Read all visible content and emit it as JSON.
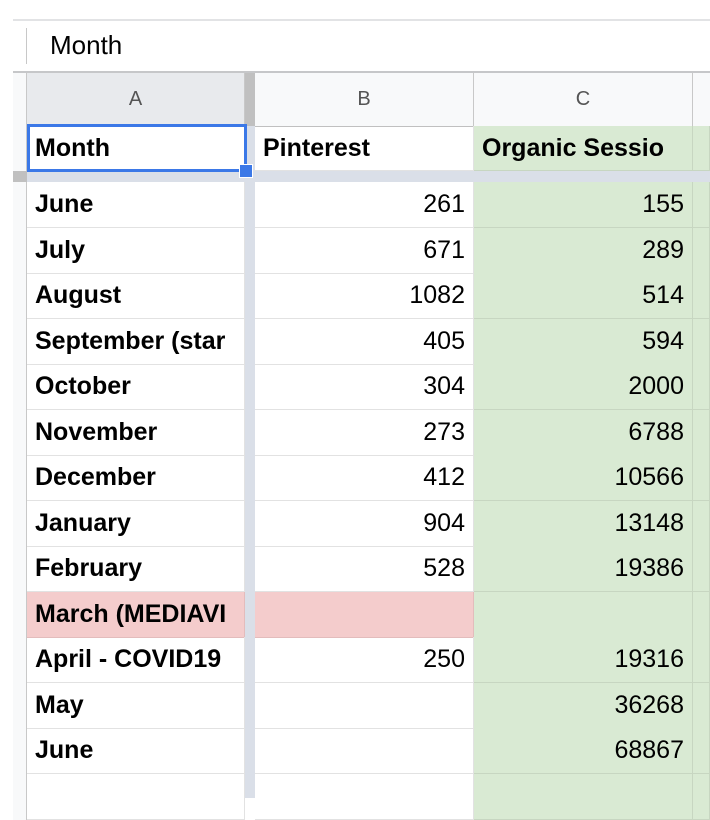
{
  "formula_bar": {
    "value": "Month"
  },
  "columns": [
    "A",
    "B",
    "C"
  ],
  "header_row": [
    "Month",
    "Pinterest",
    "Organic Sessio"
  ],
  "rows": [
    {
      "month": "June",
      "pinterest": "261",
      "organic": "155"
    },
    {
      "month": "July",
      "pinterest": "671",
      "organic": "289"
    },
    {
      "month": "August",
      "pinterest": "1082",
      "organic": "514"
    },
    {
      "month": "September (star",
      "pinterest": "405",
      "organic": "594"
    },
    {
      "month": "October",
      "pinterest": "304",
      "organic": "2000"
    },
    {
      "month": "November",
      "pinterest": "273",
      "organic": "6788"
    },
    {
      "month": "December",
      "pinterest": "412",
      "organic": "10566"
    },
    {
      "month": "January",
      "pinterest": "904",
      "organic": "13148"
    },
    {
      "month": "February",
      "pinterest": "528",
      "organic": "19386"
    },
    {
      "month": "March (MEDIAVI",
      "pinterest": "",
      "organic": "",
      "highlight": "#f4cccc"
    },
    {
      "month": "April - COVID19",
      "pinterest": "250",
      "organic": "19316"
    },
    {
      "month": "May",
      "pinterest": "",
      "organic": "36268"
    },
    {
      "month": "June",
      "pinterest": "",
      "organic": "68867"
    },
    {
      "month": "",
      "pinterest": "",
      "organic": ""
    }
  ],
  "colors": {
    "selection": "#3b78e7",
    "organic_fill": "#d9ead3",
    "march_fill": "#f4cccc"
  }
}
